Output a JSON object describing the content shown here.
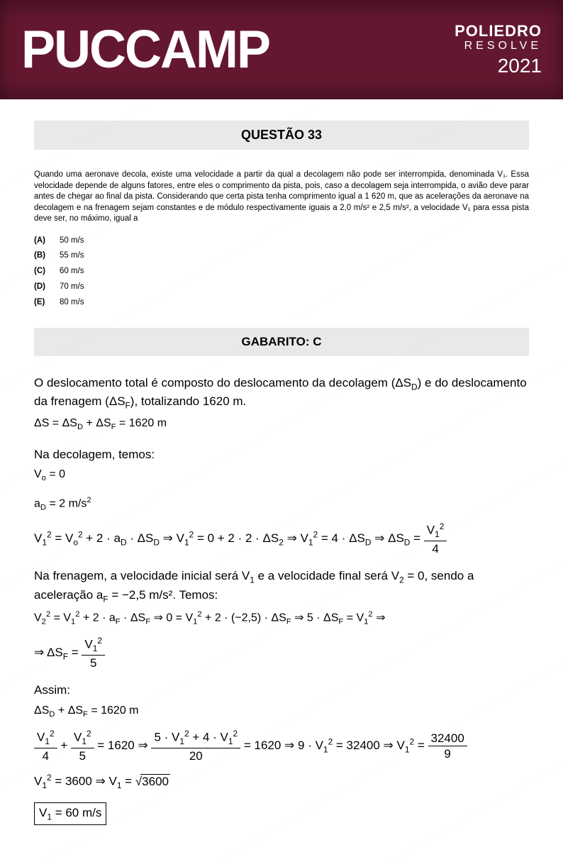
{
  "header": {
    "logo_main": "PUCCAMP",
    "brand_top": "POLIEDRO",
    "brand_sub": "RESOLVE",
    "year": "2021",
    "bg_color": "#64182f",
    "text_color": "#ffffff"
  },
  "question": {
    "title": "QUESTÃO 33",
    "problem": "Quando uma aeronave decola, existe uma velocidade a partir da qual a decolagem não pode ser interrompida, denominada V₁. Essa velocidade depende de alguns fatores, entre eles o comprimento da pista, pois, caso a decolagem seja interrompida, o avião deve parar antes de chegar ao final da pista. Considerando que certa pista tenha comprimento igual a 1 620 m, que as acelerações da aeronave na decolagem e na frenagem sejam constantes e de módulo respectivamente iguais a 2,0 m/s² e 2,5 m/s², a velocidade V₁ para essa pista deve ser, no máximo, igual a",
    "options": [
      {
        "label": "(A)",
        "text": "50 m/s"
      },
      {
        "label": "(B)",
        "text": "55 m/s"
      },
      {
        "label": "(C)",
        "text": "60 m/s"
      },
      {
        "label": "(D)",
        "text": "70 m/s"
      },
      {
        "label": "(E)",
        "text": "80 m/s"
      }
    ]
  },
  "answer": {
    "title": "GABARITO: C"
  },
  "solution": {
    "intro_p1": "O deslocamento total é composto do deslocamento da decolagem (ΔS",
    "intro_p2": ") e do deslocamento da frenagem (ΔS",
    "intro_p3": "), totalizando 1620 m.",
    "eq1": "ΔS = ΔSD + ΔSF = 1620 m",
    "takeoff_label": "Na decolagem, temos:",
    "v0_eq": "Vo = 0",
    "aD_eq": "aD = 2 m/s²",
    "brake_p1": "Na frenagem, a velocidade inicial será V",
    "brake_p2": " e a velocidade final será V",
    "brake_p3": " = 0, sendo a aceleração a",
    "brake_p4": " = −2,5 m/s². Temos:",
    "assim": "Assim:",
    "eq_sumA": "ΔSD + ΔSF = 1620 m",
    "final_1": "V₁² = 3600 ⇒ V₁ = ",
    "sqrt_val": "3600",
    "boxed": "V₁ = 60 m/s"
  },
  "colors": {
    "bar_bg": "#e9e9e9",
    "text": "#000000"
  }
}
